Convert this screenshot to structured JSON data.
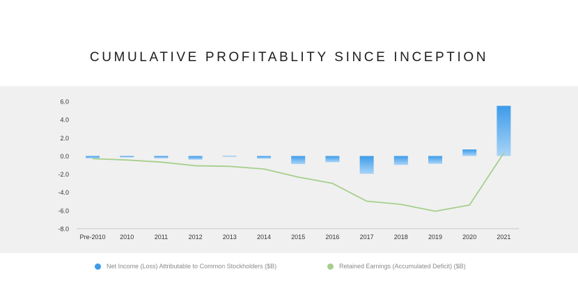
{
  "title": "CUMULATIVE PROFITABLITY SINCE INCEPTION",
  "colors": {
    "bar_top": "#3d9be9",
    "bar_bottom": "#a9d4f7",
    "line": "#a6cf8c",
    "axis_text": "#333333",
    "grid": "#c9c9c9"
  },
  "chart_data": {
    "type": "bar",
    "categories": [
      "Pre-2010",
      "2010",
      "2011",
      "2012",
      "2013",
      "2014",
      "2015",
      "2016",
      "2017",
      "2018",
      "2019",
      "2020",
      "2021"
    ],
    "ylim": [
      -8.0,
      6.0
    ],
    "yticks": [
      "6.0",
      "4.0",
      "2.0",
      "0.0",
      "-2.0",
      "-4.0",
      "-6.0",
      "-8.0"
    ],
    "ytick_values": [
      6,
      4,
      2,
      0,
      -2,
      -4,
      -6,
      -8
    ],
    "grid": false,
    "legend_position": "bottom",
    "series": [
      {
        "name": "Net Income (Loss) Attributable to Common Stockholders ($B)",
        "type": "bar",
        "values": [
          -0.26,
          -0.15,
          -0.25,
          -0.4,
          -0.07,
          -0.29,
          -0.89,
          -0.68,
          -1.96,
          -0.98,
          -0.86,
          0.72,
          5.52
        ]
      },
      {
        "name": "Retained Earnings (Accumulated Deficit) ($B)",
        "type": "line",
        "values": [
          -0.29,
          -0.44,
          -0.67,
          -1.07,
          -1.14,
          -1.43,
          -2.32,
          -3.01,
          -4.97,
          -5.32,
          -6.08,
          -5.4,
          0.33
        ]
      }
    ]
  }
}
